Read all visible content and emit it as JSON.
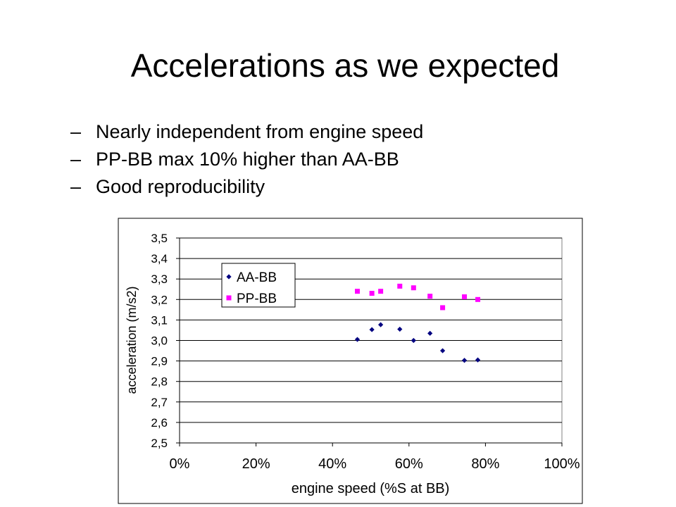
{
  "slide": {
    "title": "Accelerations as we expected",
    "bullets": [
      "Nearly independent from engine speed",
      "PP-BB max 10% higher than AA-BB",
      "Good reproducibility"
    ],
    "bullet_marker": "–"
  },
  "chart_data": {
    "type": "scatter",
    "title": "",
    "xlabel": "engine speed (%S at BB)",
    "ylabel": "acceleration (m/s2)",
    "xlim": [
      0,
      1
    ],
    "ylim": [
      2.5,
      3.5
    ],
    "x_ticks": [
      0,
      0.2,
      0.4,
      0.6,
      0.8,
      1.0
    ],
    "x_tick_labels": [
      "0%",
      "20%",
      "40%",
      "60%",
      "80%",
      "100%"
    ],
    "y_ticks": [
      2.5,
      2.6,
      2.7,
      2.8,
      2.9,
      3.0,
      3.1,
      3.2,
      3.3,
      3.4,
      3.5
    ],
    "y_tick_labels": [
      "2,5",
      "2,6",
      "2,7",
      "2,8",
      "2,9",
      "3,0",
      "3,1",
      "3,2",
      "3,3",
      "3,4",
      "3,5"
    ],
    "grid": "horizontal",
    "legend_position": "top-left",
    "series": [
      {
        "name": "AA-BB",
        "marker": "diamond",
        "color": "#000080",
        "points": [
          [
            0.465,
            3.005
          ],
          [
            0.503,
            3.053
          ],
          [
            0.526,
            3.077
          ],
          [
            0.576,
            3.055
          ],
          [
            0.612,
            3.0
          ],
          [
            0.655,
            3.035
          ],
          [
            0.688,
            2.95
          ],
          [
            0.745,
            2.903
          ],
          [
            0.78,
            2.905
          ]
        ]
      },
      {
        "name": "PP-BB",
        "marker": "square",
        "color": "#ff00ff",
        "points": [
          [
            0.465,
            3.24
          ],
          [
            0.503,
            3.23
          ],
          [
            0.526,
            3.24
          ],
          [
            0.576,
            3.265
          ],
          [
            0.612,
            3.257
          ],
          [
            0.655,
            3.216
          ],
          [
            0.688,
            3.16
          ],
          [
            0.745,
            3.213
          ],
          [
            0.78,
            3.2
          ]
        ]
      }
    ]
  }
}
